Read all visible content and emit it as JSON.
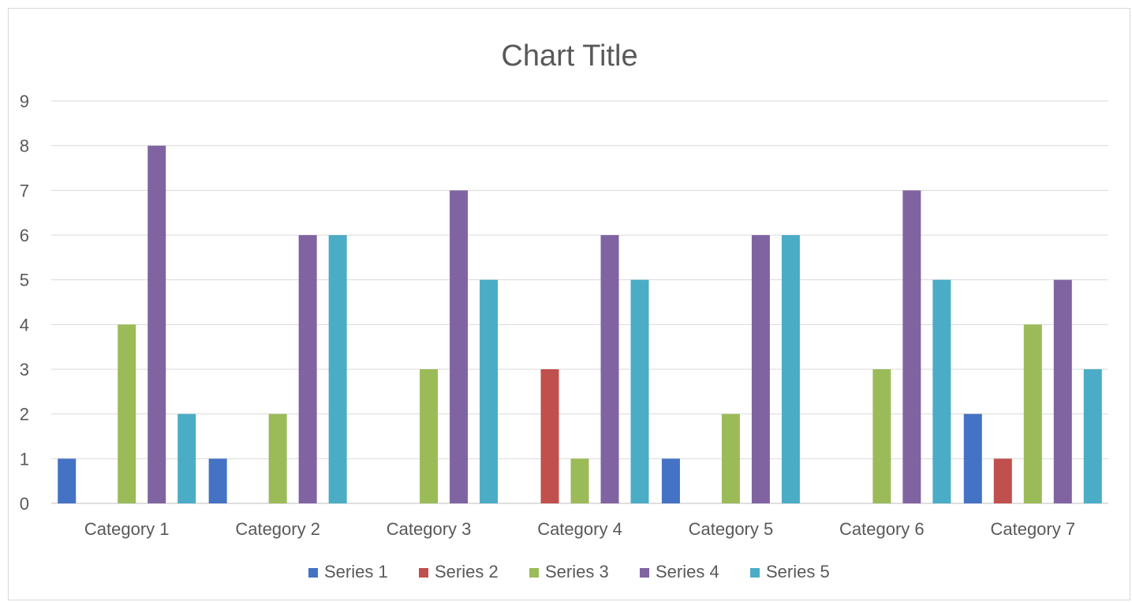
{
  "chart_data": {
    "type": "bar",
    "title": "Chart Title",
    "xlabel": "",
    "ylabel": "",
    "ylim": [
      0,
      9
    ],
    "yticks": [
      0,
      1,
      2,
      3,
      4,
      5,
      6,
      7,
      8,
      9
    ],
    "grid": true,
    "legend_position": "bottom",
    "categories": [
      "Category 1",
      "Category 2",
      "Category 3",
      "Category 4",
      "Category 5",
      "Category 6",
      "Category 7"
    ],
    "series": [
      {
        "name": "Series 1",
        "color": "#4472c4",
        "values": [
          1,
          1,
          0,
          0,
          1,
          0,
          2
        ]
      },
      {
        "name": "Series 2",
        "color": "#c0504d",
        "values": [
          0,
          0,
          0,
          3,
          0,
          0,
          1
        ]
      },
      {
        "name": "Series 3",
        "color": "#9bbb59",
        "values": [
          4,
          2,
          3,
          1,
          2,
          3,
          4
        ]
      },
      {
        "name": "Series 4",
        "color": "#8064a2",
        "values": [
          8,
          6,
          7,
          6,
          6,
          7,
          5
        ]
      },
      {
        "name": "Series 5",
        "color": "#4bacc6",
        "values": [
          2,
          6,
          5,
          5,
          6,
          5,
          3
        ]
      }
    ]
  }
}
